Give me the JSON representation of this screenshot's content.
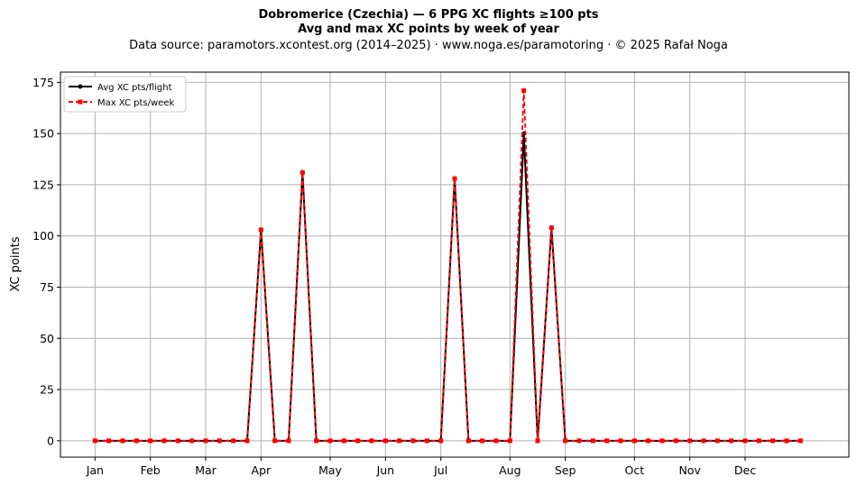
{
  "chart_data": {
    "type": "line",
    "title_line1": "Dobromerice (Czechia)  —  6 PPG XC flights ≥100 pts",
    "title_line2": "Avg and max XC points by week of year",
    "subtitle": "Data source: paramotors.xcontest.org (2014–2025)  ·  www.noga.es/paramotoring  ·  © 2025 Rafał Noga",
    "ylabel": "XC points",
    "xlabel": "",
    "x_tick_labels": [
      "Jan",
      "Feb",
      "Mar",
      "Apr",
      "May",
      "Jun",
      "Jul",
      "Aug",
      "Sep",
      "Oct",
      "Nov",
      "Dec"
    ],
    "x_tick_weeks": [
      1,
      5,
      9,
      13,
      18,
      22,
      26,
      31,
      35,
      40,
      44,
      48
    ],
    "xlim": [
      -1.5,
      55.5
    ],
    "ylim": [
      -8,
      180
    ],
    "y_ticks": [
      0,
      25,
      50,
      75,
      100,
      125,
      150,
      175
    ],
    "grid": true,
    "legend_position": "top-left",
    "x": [
      1,
      2,
      3,
      4,
      5,
      6,
      7,
      8,
      9,
      10,
      11,
      12,
      13,
      14,
      15,
      16,
      17,
      18,
      19,
      20,
      21,
      22,
      23,
      24,
      25,
      26,
      27,
      28,
      29,
      30,
      31,
      32,
      33,
      34,
      35,
      36,
      37,
      38,
      39,
      40,
      41,
      42,
      43,
      44,
      45,
      46,
      47,
      48,
      49,
      50,
      51,
      52
    ],
    "series": [
      {
        "name": "Avg XC pts/flight",
        "color": "#000000",
        "values": [
          0,
          0,
          0,
          0,
          0,
          0,
          0,
          0,
          0,
          0,
          0,
          0,
          103,
          0,
          0,
          131,
          0,
          0,
          0,
          0,
          0,
          0,
          0,
          0,
          0,
          0,
          128,
          0,
          0,
          0,
          0,
          150,
          0,
          104,
          0,
          0,
          0,
          0,
          0,
          0,
          0,
          0,
          0,
          0,
          0,
          0,
          0,
          0,
          0,
          0,
          0,
          0
        ]
      },
      {
        "name": "Max XC pts/week",
        "color": "#ff0000",
        "values": [
          0,
          0,
          0,
          0,
          0,
          0,
          0,
          0,
          0,
          0,
          0,
          0,
          103,
          0,
          0,
          131,
          0,
          0,
          0,
          0,
          0,
          0,
          0,
          0,
          0,
          0,
          128,
          0,
          0,
          0,
          0,
          171,
          0,
          104,
          0,
          0,
          0,
          0,
          0,
          0,
          0,
          0,
          0,
          0,
          0,
          0,
          0,
          0,
          0,
          0,
          0,
          0
        ]
      }
    ]
  }
}
